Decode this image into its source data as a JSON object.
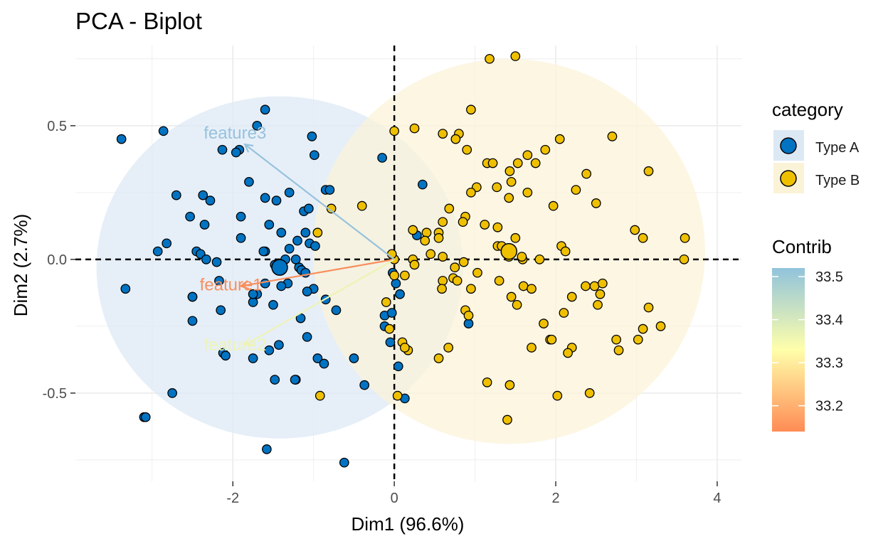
{
  "chart_data": {
    "type": "scatter",
    "title": "PCA - Biplot",
    "xlabel": "Dim1 (96.6%)",
    "ylabel": "Dim2 (2.7%)",
    "xlim": [
      -3.95,
      4.3
    ],
    "ylim": [
      -0.83,
      0.8
    ],
    "x_ticks": [
      -2,
      0,
      2,
      4
    ],
    "y_ticks": [
      -0.5,
      0.0,
      0.5
    ],
    "x_tick_labels": [
      "-2",
      "0",
      "2",
      "4"
    ],
    "y_tick_labels": [
      "-0.5",
      "0.0",
      "0.5"
    ],
    "grid": true,
    "reference_lines": {
      "x": 0,
      "y": 0,
      "style": "dashed"
    },
    "legend_placement": "right",
    "colors": {
      "Type A": "#0073C2",
      "Type B": "#EFC000"
    },
    "legend": {
      "category_title": "category",
      "category_entries": [
        "Type A",
        "Type B"
      ],
      "contrib_title": "Contrib",
      "contrib_ticks": [
        33.5,
        33.4,
        33.3,
        33.2
      ],
      "contrib_tick_labels": [
        "33.5",
        "33.4",
        "33.3",
        "33.2"
      ],
      "contrib_range": [
        33.14,
        33.52
      ],
      "contrib_colors": [
        "#FF8C55",
        "#FFFFAA",
        "#91C3DC"
      ]
    },
    "ellipses": [
      {
        "category": "Type A",
        "cx": -1.42,
        "cy": -0.03,
        "rx": 2.27,
        "ry": 0.64,
        "fill": "#DCE9F5"
      },
      {
        "category": "Type B",
        "cx": 1.42,
        "cy": 0.03,
        "rx": 2.43,
        "ry": 0.72,
        "fill": "#FBF3D8"
      }
    ],
    "centroids": [
      {
        "category": "Type A",
        "x": -1.42,
        "y": -0.03
      },
      {
        "category": "Type B",
        "x": 1.42,
        "y": 0.03
      }
    ],
    "variables": [
      {
        "name": "feature1",
        "x": -1.9,
        "y": -0.1,
        "contrib": 33.15,
        "color": "#F98E5D"
      },
      {
        "name": "feature2",
        "x": -1.85,
        "y": -0.32,
        "contrib": 33.33,
        "color": "#EEF3B4"
      },
      {
        "name": "feature3",
        "x": -1.85,
        "y": 0.43,
        "contrib": 33.51,
        "color": "#97C2DC"
      }
    ],
    "series": [
      {
        "name": "Type A",
        "x": [
          -3.38,
          -2.86,
          -1.92,
          -1.6,
          -1.7,
          -2.13,
          -1.96,
          -1.02,
          -0.99,
          -3.1,
          -2.82,
          -2.93,
          -2.7,
          -2.37,
          -2.53,
          -2.35,
          -2.28,
          -1.8,
          -1.6,
          -1.46,
          -1.3,
          -1.12,
          -1.06,
          -1.1,
          -0.85,
          -0.8,
          -1.9,
          -1.55,
          -1.4,
          -1.6,
          -1.2,
          -1.3,
          -1.05,
          -0.98,
          -2.45,
          -2.4,
          -2.33,
          -2.2,
          -1.9,
          -1.45,
          -1.62,
          -1.18,
          -1.22,
          -1.35,
          -1.48,
          -1.15,
          -1.1,
          -1.32,
          -1.6,
          -1.4,
          -1.7,
          -1.75,
          -2.5,
          -2.17,
          -2.15,
          -2.5,
          -2.5,
          -2.12,
          -2.09,
          -1.75,
          -1.75,
          -1.5,
          -1.16,
          -1.08,
          -1.0,
          -0.72,
          -0.85,
          -1.08,
          -0.95,
          -0.87,
          -1.55,
          -1.43,
          -1.48,
          -1.22,
          -1.23,
          -2.75,
          -3.08,
          -3.33,
          -1.58,
          -0.62,
          -0.37,
          -0.12,
          -0.15,
          -0.02,
          0.02,
          0.07,
          -0.05,
          0.05,
          0.13,
          0.28,
          0.35,
          0.92,
          -0.5,
          -0.12,
          -0.03
        ],
        "y": [
          0.45,
          0.48,
          0.41,
          0.56,
          0.5,
          0.41,
          0.4,
          0.46,
          0.39,
          -0.59,
          0.06,
          0.03,
          0.24,
          0.24,
          0.16,
          0.13,
          0.22,
          0.29,
          0.23,
          0.22,
          0.25,
          0.18,
          0.19,
          0.1,
          0.26,
          0.26,
          0.16,
          0.13,
          0.1,
          0.03,
          0.07,
          0.04,
          0.06,
          0.05,
          0.03,
          0.02,
          0.0,
          -0.01,
          0.08,
          -0.03,
          0.03,
          -0.03,
          0.0,
          0.0,
          -0.02,
          -0.04,
          -0.05,
          -0.09,
          -0.09,
          -0.1,
          -0.13,
          -0.16,
          -0.14,
          -0.08,
          -0.19,
          -0.23,
          -0.14,
          -0.35,
          -0.36,
          -0.37,
          -0.13,
          -0.17,
          -0.22,
          -0.29,
          -0.11,
          -0.19,
          -0.15,
          -0.12,
          -0.37,
          -0.39,
          -0.34,
          -0.32,
          -0.45,
          -0.45,
          -0.45,
          -0.5,
          -0.59,
          -0.11,
          -0.71,
          -0.76,
          -0.47,
          -0.21,
          0.38,
          -0.05,
          -0.09,
          -0.13,
          -0.31,
          -0.4,
          -0.52,
          0.09,
          0.28,
          -0.24,
          -0.37,
          -0.25,
          -0.2
        ]
      },
      {
        "name": "Type B",
        "x": [
          1.18,
          1.5,
          0.95,
          0.0,
          0.25,
          0.6,
          0.8,
          0.76,
          0.9,
          1.15,
          1.22,
          1.43,
          1.53,
          1.65,
          1.75,
          1.87,
          2.05,
          2.7,
          1.45,
          1.27,
          1.02,
          0.95,
          1.42,
          1.65,
          1.97,
          2.25,
          2.38,
          2.5,
          3.15,
          2.98,
          3.08,
          3.6,
          0.88,
          0.85,
          0.68,
          0.6,
          0.0,
          0.0,
          0.23,
          0.4,
          0.38,
          0.55,
          0.55,
          1.28,
          1.33,
          1.5,
          1.28,
          1.12,
          2.07,
          2.12,
          1.8,
          0.75,
          0.86,
          1.42,
          1.59,
          1.58,
          1.03,
          0.95,
          0.73,
          0.6,
          0.59,
          0.88,
          1.3,
          1.45,
          1.52,
          1.6,
          1.7,
          2.37,
          2.48,
          2.58,
          2.2,
          2.1,
          1.85,
          0.67,
          0.55,
          0.17,
          0.1,
          0.13,
          1.93,
          1.7,
          1.95,
          2.2,
          2.15,
          2.55,
          2.52,
          2.75,
          2.78,
          3.02,
          3.08,
          3.15,
          3.3,
          3.59,
          0.92,
          1.15,
          1.43,
          1.4,
          2.02,
          2.42,
          0.45,
          -0.03,
          0.6,
          0.78,
          0.23,
          0.25,
          -0.92,
          -0.4,
          -0.78,
          -0.95,
          -0.06,
          0.04,
          -0.1,
          0.13
        ],
        "y": [
          0.75,
          0.76,
          0.56,
          0.48,
          0.49,
          0.47,
          0.47,
          0.45,
          0.41,
          0.36,
          0.36,
          0.33,
          0.36,
          0.39,
          0.36,
          0.41,
          0.45,
          0.46,
          0.29,
          0.27,
          0.27,
          0.25,
          0.23,
          0.25,
          0.2,
          0.26,
          0.32,
          0.21,
          0.33,
          0.11,
          0.08,
          0.08,
          0.16,
          0.14,
          0.19,
          0.14,
          0.0,
          -0.06,
          0.11,
          0.1,
          0.07,
          0.1,
          0.08,
          0.05,
          0.05,
          0.08,
          0.12,
          0.13,
          0.05,
          0.03,
          0.0,
          -0.03,
          -0.01,
          0.01,
          0.0,
          0.01,
          -0.05,
          -0.11,
          -0.07,
          -0.08,
          -0.11,
          -0.19,
          -0.08,
          -0.14,
          -0.17,
          -0.1,
          -0.11,
          -0.1,
          -0.1,
          -0.09,
          -0.14,
          -0.2,
          -0.24,
          -0.33,
          -0.37,
          -0.34,
          -0.31,
          -0.33,
          -0.3,
          -0.33,
          -0.3,
          -0.33,
          -0.35,
          -0.13,
          -0.17,
          -0.3,
          -0.34,
          -0.3,
          -0.26,
          -0.18,
          -0.25,
          0.0,
          -0.21,
          -0.46,
          -0.47,
          -0.6,
          -0.51,
          -0.5,
          0.02,
          0.02,
          0.01,
          -0.08,
          0.0,
          -0.02,
          -0.51,
          0.2,
          0.19,
          0.1,
          -0.26,
          -0.51,
          -0.16,
          -0.06
        ]
      }
    ]
  }
}
